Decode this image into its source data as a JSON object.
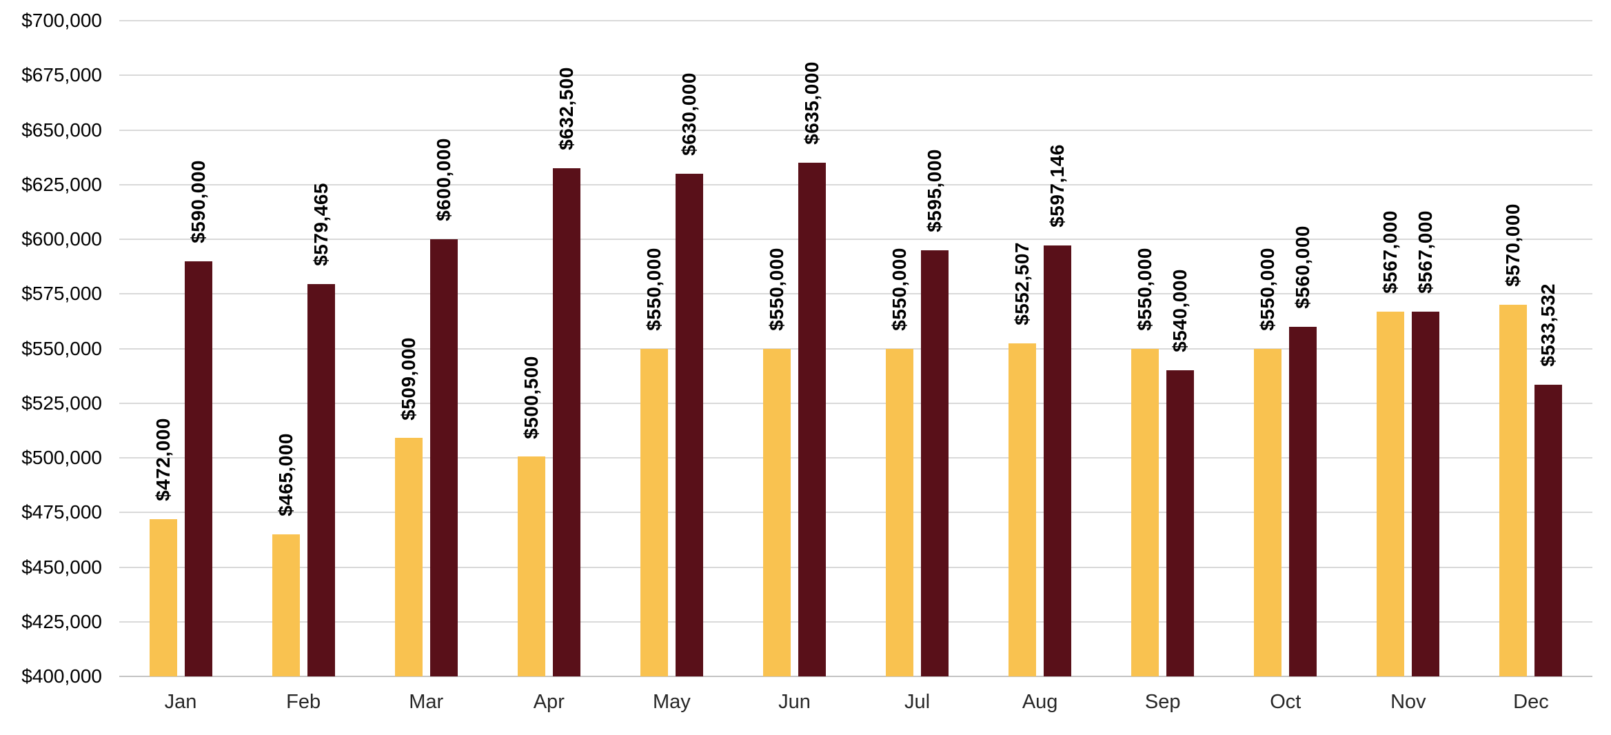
{
  "chart_data": {
    "type": "bar",
    "title": "",
    "categories": [
      "Jan",
      "Feb",
      "Mar",
      "Apr",
      "May",
      "Jun",
      "Jul",
      "Aug",
      "Sep",
      "Oct",
      "Nov",
      "Dec"
    ],
    "series": [
      {
        "key": "series-1",
        "color": "#F9C250",
        "values": [
          472000,
          465000,
          509000,
          500500,
          550000,
          550000,
          550000,
          552507,
          550000,
          550000,
          567000,
          570000
        ],
        "labels": [
          "$472,000",
          "$465,000",
          "$509,000",
          "$500,500",
          "$550,000",
          "$550,000",
          "$550,000",
          "$552,507",
          "$550,000",
          "$550,000",
          "$567,000",
          "$570,000"
        ]
      },
      {
        "key": "series-2",
        "color": "#591019",
        "values": [
          590000,
          579465,
          600000,
          632500,
          630000,
          635000,
          595000,
          597146,
          540000,
          560000,
          567000,
          533532
        ],
        "labels": [
          "$590,000",
          "$579,465",
          "$600,000",
          "$632,500",
          "$630,000",
          "$635,000",
          "$595,000",
          "$597,146",
          "$540,000",
          "$560,000",
          "$567,000",
          "$533,532"
        ]
      }
    ],
    "y_axis": {
      "min": 400000,
      "max": 700000,
      "step": 25000,
      "tick_labels": [
        "$400,000",
        "$425,000",
        "$450,000",
        "$475,000",
        "$500,000",
        "$525,000",
        "$550,000",
        "$575,000",
        "$600,000",
        "$625,000",
        "$650,000",
        "$675,000",
        "$700,000"
      ]
    },
    "xlabel": "",
    "ylabel": "",
    "grid": "horizontal",
    "legend_position": "none",
    "data_labels": {
      "position": "outside-end",
      "rotation": -90,
      "bold": true
    },
    "colors": {
      "gridline": "#D9D9D9",
      "axis_line": "#C3C3C3",
      "label_text": "#000000",
      "category_text": "#262626",
      "background": "#FFFFFF"
    }
  }
}
